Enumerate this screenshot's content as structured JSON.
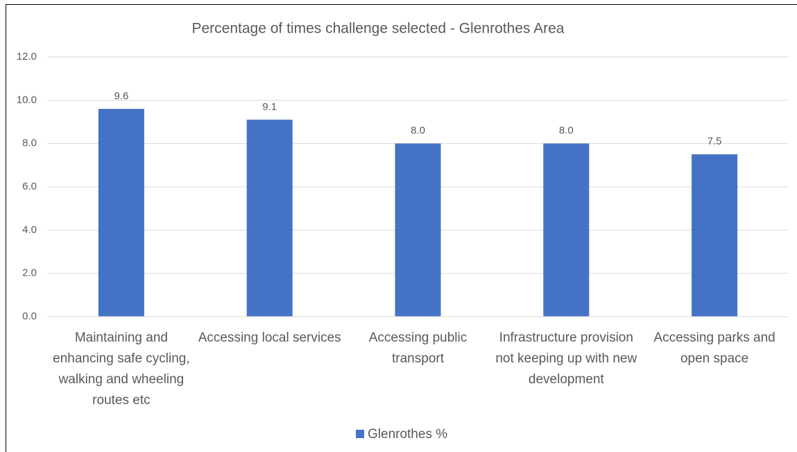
{
  "chart_data": {
    "type": "bar",
    "title": "Percentage of times challenge selected - Glenrothes Area",
    "categories": [
      "Maintaining and enhancing safe cycling, walking and wheeling routes etc",
      "Accessing local services",
      "Accessing public transport",
      "Infrastructure provision not keeping up with new development",
      "Accessing parks and open space"
    ],
    "series": [
      {
        "name": "Glenrothes %",
        "color": "#4472c4",
        "values": [
          9.6,
          9.1,
          8.0,
          8.0,
          7.5
        ],
        "value_labels": [
          "9.6",
          "9.1",
          "8.0",
          "8.0",
          "7.5"
        ]
      }
    ],
    "ylim": [
      0,
      12
    ],
    "yticks": [
      {
        "value": 0,
        "label": "0.0"
      },
      {
        "value": 2,
        "label": "2.0"
      },
      {
        "value": 4,
        "label": "4.0"
      },
      {
        "value": 6,
        "label": "6.0"
      },
      {
        "value": 8,
        "label": "8.0"
      },
      {
        "value": 10,
        "label": "10.0"
      },
      {
        "value": 12,
        "label": "12.0"
      }
    ],
    "grid": true,
    "legend": "bottom"
  }
}
